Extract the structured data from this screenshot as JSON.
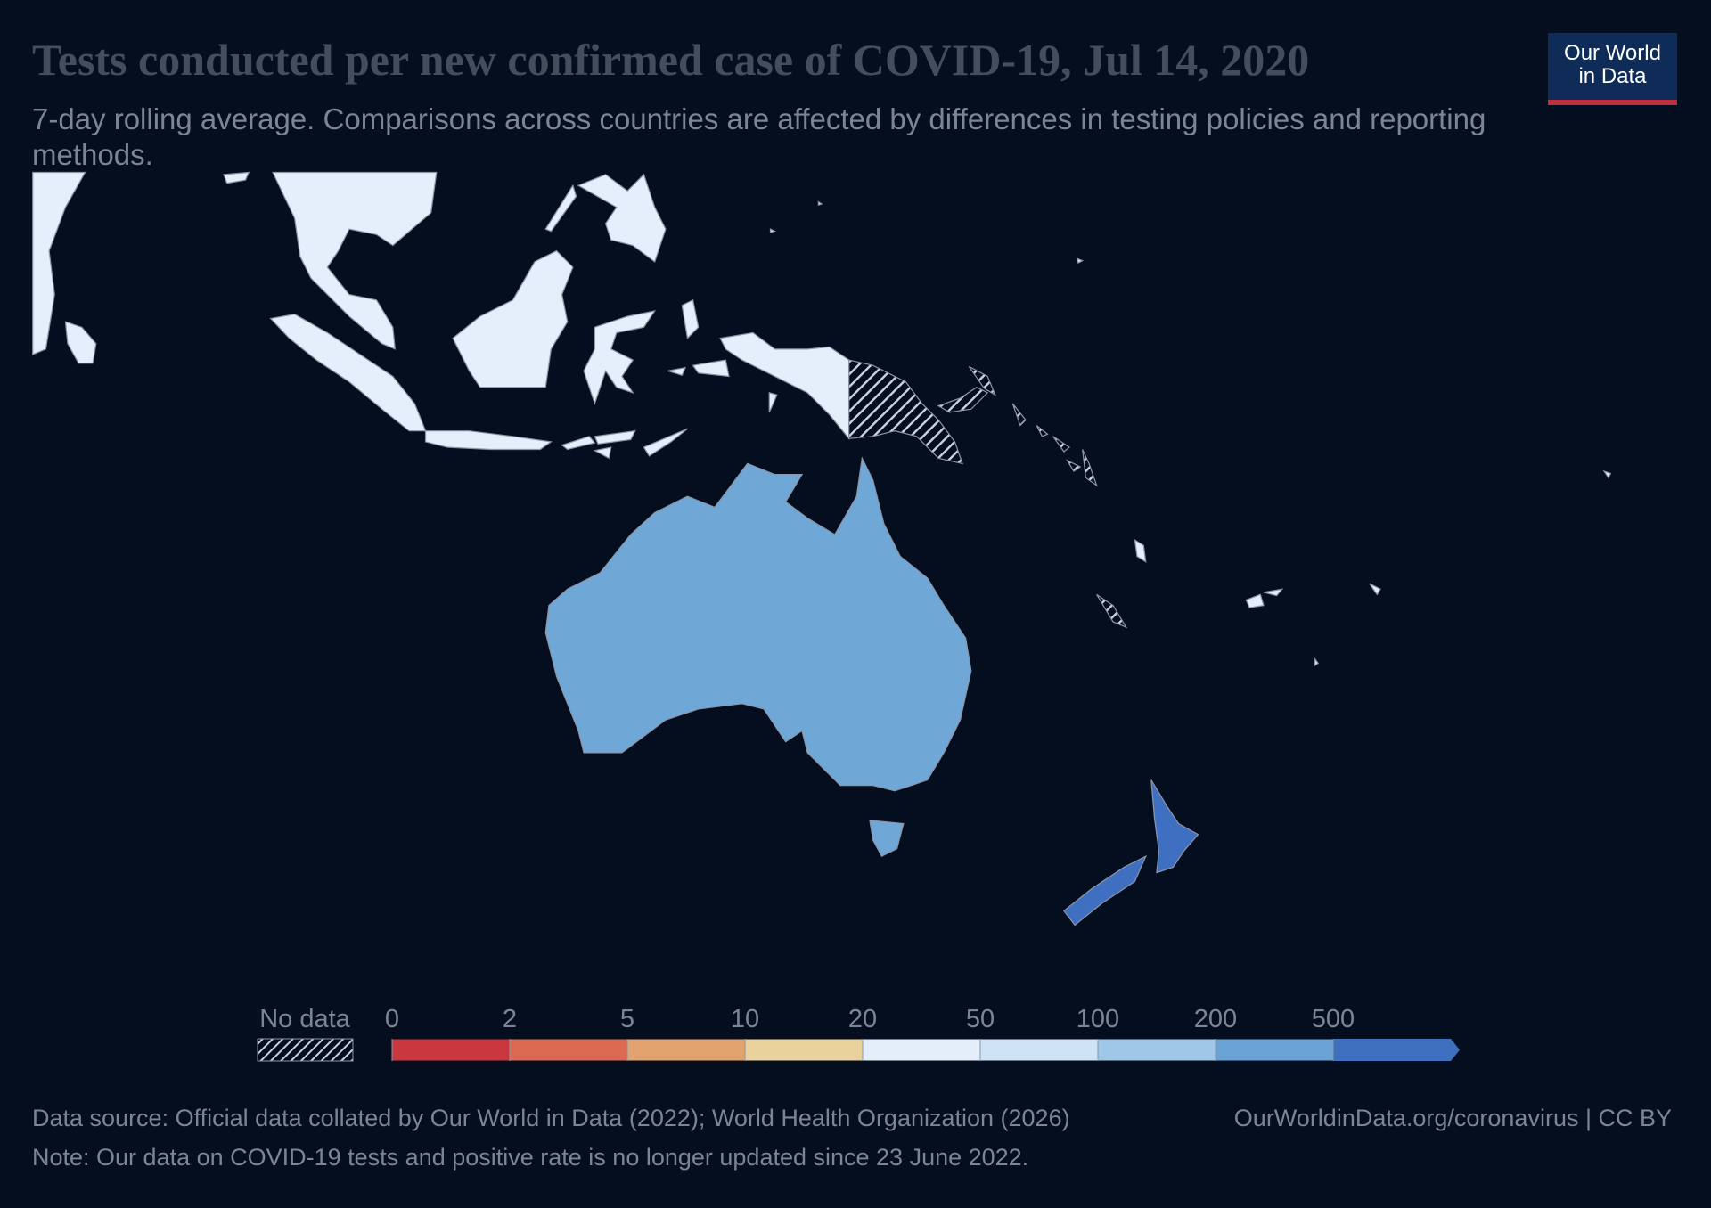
{
  "header": {
    "title": "Tests conducted per new confirmed case of COVID-19, Jul 14, 2020",
    "subtitle": "7-day rolling average. Comparisons across countries are affected by differences in testing policies and reporting methods.",
    "logo": [
      "Our World",
      "in Data"
    ]
  },
  "legend": {
    "no_data": "No data",
    "ticks": [
      0,
      2,
      5,
      10,
      20,
      50,
      100,
      200,
      500
    ],
    "colors": [
      "#c9373f",
      "#dc6a53",
      "#e3a36e",
      "#e9d29b",
      "#e4eefb",
      "#cde3f6",
      "#9fc8e8",
      "#6aa3d5",
      "#3f70bf"
    ]
  },
  "footer": {
    "source": "Data source: Official data collated by Our World in Data (2022); World Health Organization (2026)",
    "link": "OurWorldinData.org/coronavirus | CC BY",
    "note": "Note: Our data on COVID-19 tests and positive rate is no longer updated since 23 June 2022."
  }
}
